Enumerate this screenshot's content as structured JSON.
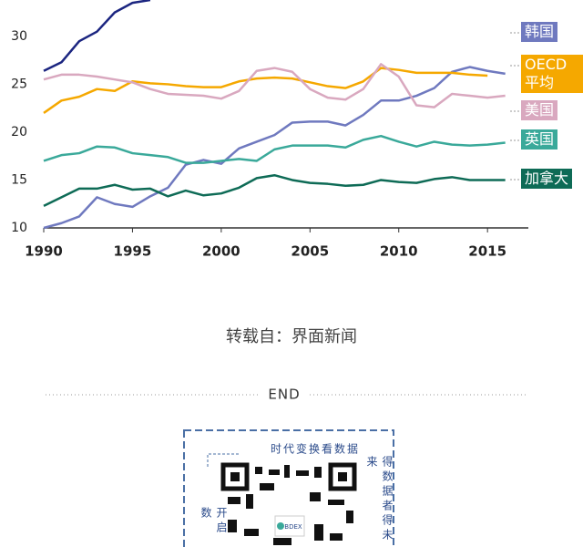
{
  "chart_data": {
    "type": "line",
    "x": [
      1990,
      1991,
      1992,
      1993,
      1994,
      1995,
      1996,
      1997,
      1998,
      1999,
      2000,
      2001,
      2002,
      2003,
      2004,
      2005,
      2006,
      2007,
      2008,
      2009,
      2010,
      2011,
      2012,
      2013,
      2014,
      2015,
      2016
    ],
    "xlim": [
      1990,
      2017.3
    ],
    "xticks": [
      1990,
      1995,
      2000,
      2005,
      2010,
      2015
    ],
    "ylim": [
      10,
      33.8
    ],
    "yticks": [
      10,
      15,
      20,
      25,
      30
    ],
    "watermark": "BDEX",
    "series": [
      {
        "color": "#1b2580",
        "values": [
          26.4,
          27.3,
          29.5,
          30.5,
          32.5,
          33.5,
          33.8,
          null,
          null,
          null,
          null,
          null,
          null,
          null,
          null,
          null,
          null,
          null,
          null,
          null,
          null,
          null,
          null,
          null,
          null,
          null,
          null
        ]
      },
      {
        "name": "韩国",
        "color": "#6f79bf",
        "values": [
          10,
          10.5,
          11.2,
          13.2,
          12.5,
          12.2,
          13.3,
          14.2,
          16.6,
          17.1,
          16.7,
          18.3,
          19,
          19.7,
          21,
          21.1,
          21.1,
          20.7,
          21.8,
          23.3,
          23.3,
          23.8,
          24.6,
          26.3,
          26.8,
          26.4,
          26.1
        ]
      },
      {
        "name": "OECD平均",
        "color": "#f5a800",
        "values": [
          22,
          23.3,
          23.7,
          24.5,
          24.3,
          25.3,
          25.1,
          25,
          24.8,
          24.7,
          24.7,
          25.3,
          25.6,
          25.7,
          25.6,
          25.2,
          24.8,
          24.6,
          25.3,
          26.7,
          26.5,
          26.2,
          26.2,
          26.2,
          26,
          25.9,
          null
        ]
      },
      {
        "name": "美国",
        "color": "#d9a8bf",
        "values": [
          25.5,
          26,
          26,
          25.8,
          25.5,
          25.2,
          24.5,
          24,
          23.9,
          23.8,
          23.5,
          24.3,
          26.4,
          26.7,
          26.3,
          24.5,
          23.6,
          23.4,
          24.5,
          27.1,
          25.8,
          22.8,
          22.6,
          24,
          23.8,
          23.6,
          23.8
        ]
      },
      {
        "name": "英国",
        "color": "#3aa99a",
        "values": [
          17,
          17.6,
          17.8,
          18.5,
          18.4,
          17.8,
          17.6,
          17.4,
          16.8,
          16.8,
          17,
          17.2,
          17,
          18.2,
          18.6,
          18.6,
          18.6,
          18.4,
          19.2,
          19.6,
          19,
          18.5,
          19,
          18.7,
          18.6,
          18.7,
          18.9
        ]
      },
      {
        "name": "加拿大",
        "color": "#0e6b56",
        "values": [
          12.3,
          13.2,
          14.1,
          14.1,
          14.5,
          14,
          14.1,
          13.3,
          13.9,
          13.4,
          13.6,
          14.2,
          15.2,
          15.5,
          15,
          14.7,
          14.6,
          14.4,
          14.5,
          15,
          14.8,
          14.7,
          15.1,
          15.3,
          15,
          15,
          15
        ]
      }
    ]
  },
  "source": "转载自：界面新闻",
  "end": "END",
  "qr": {
    "top": "时代变换看数据",
    "right": "得数据者得未来",
    "left": "开启数",
    "logo": "BDEX"
  }
}
